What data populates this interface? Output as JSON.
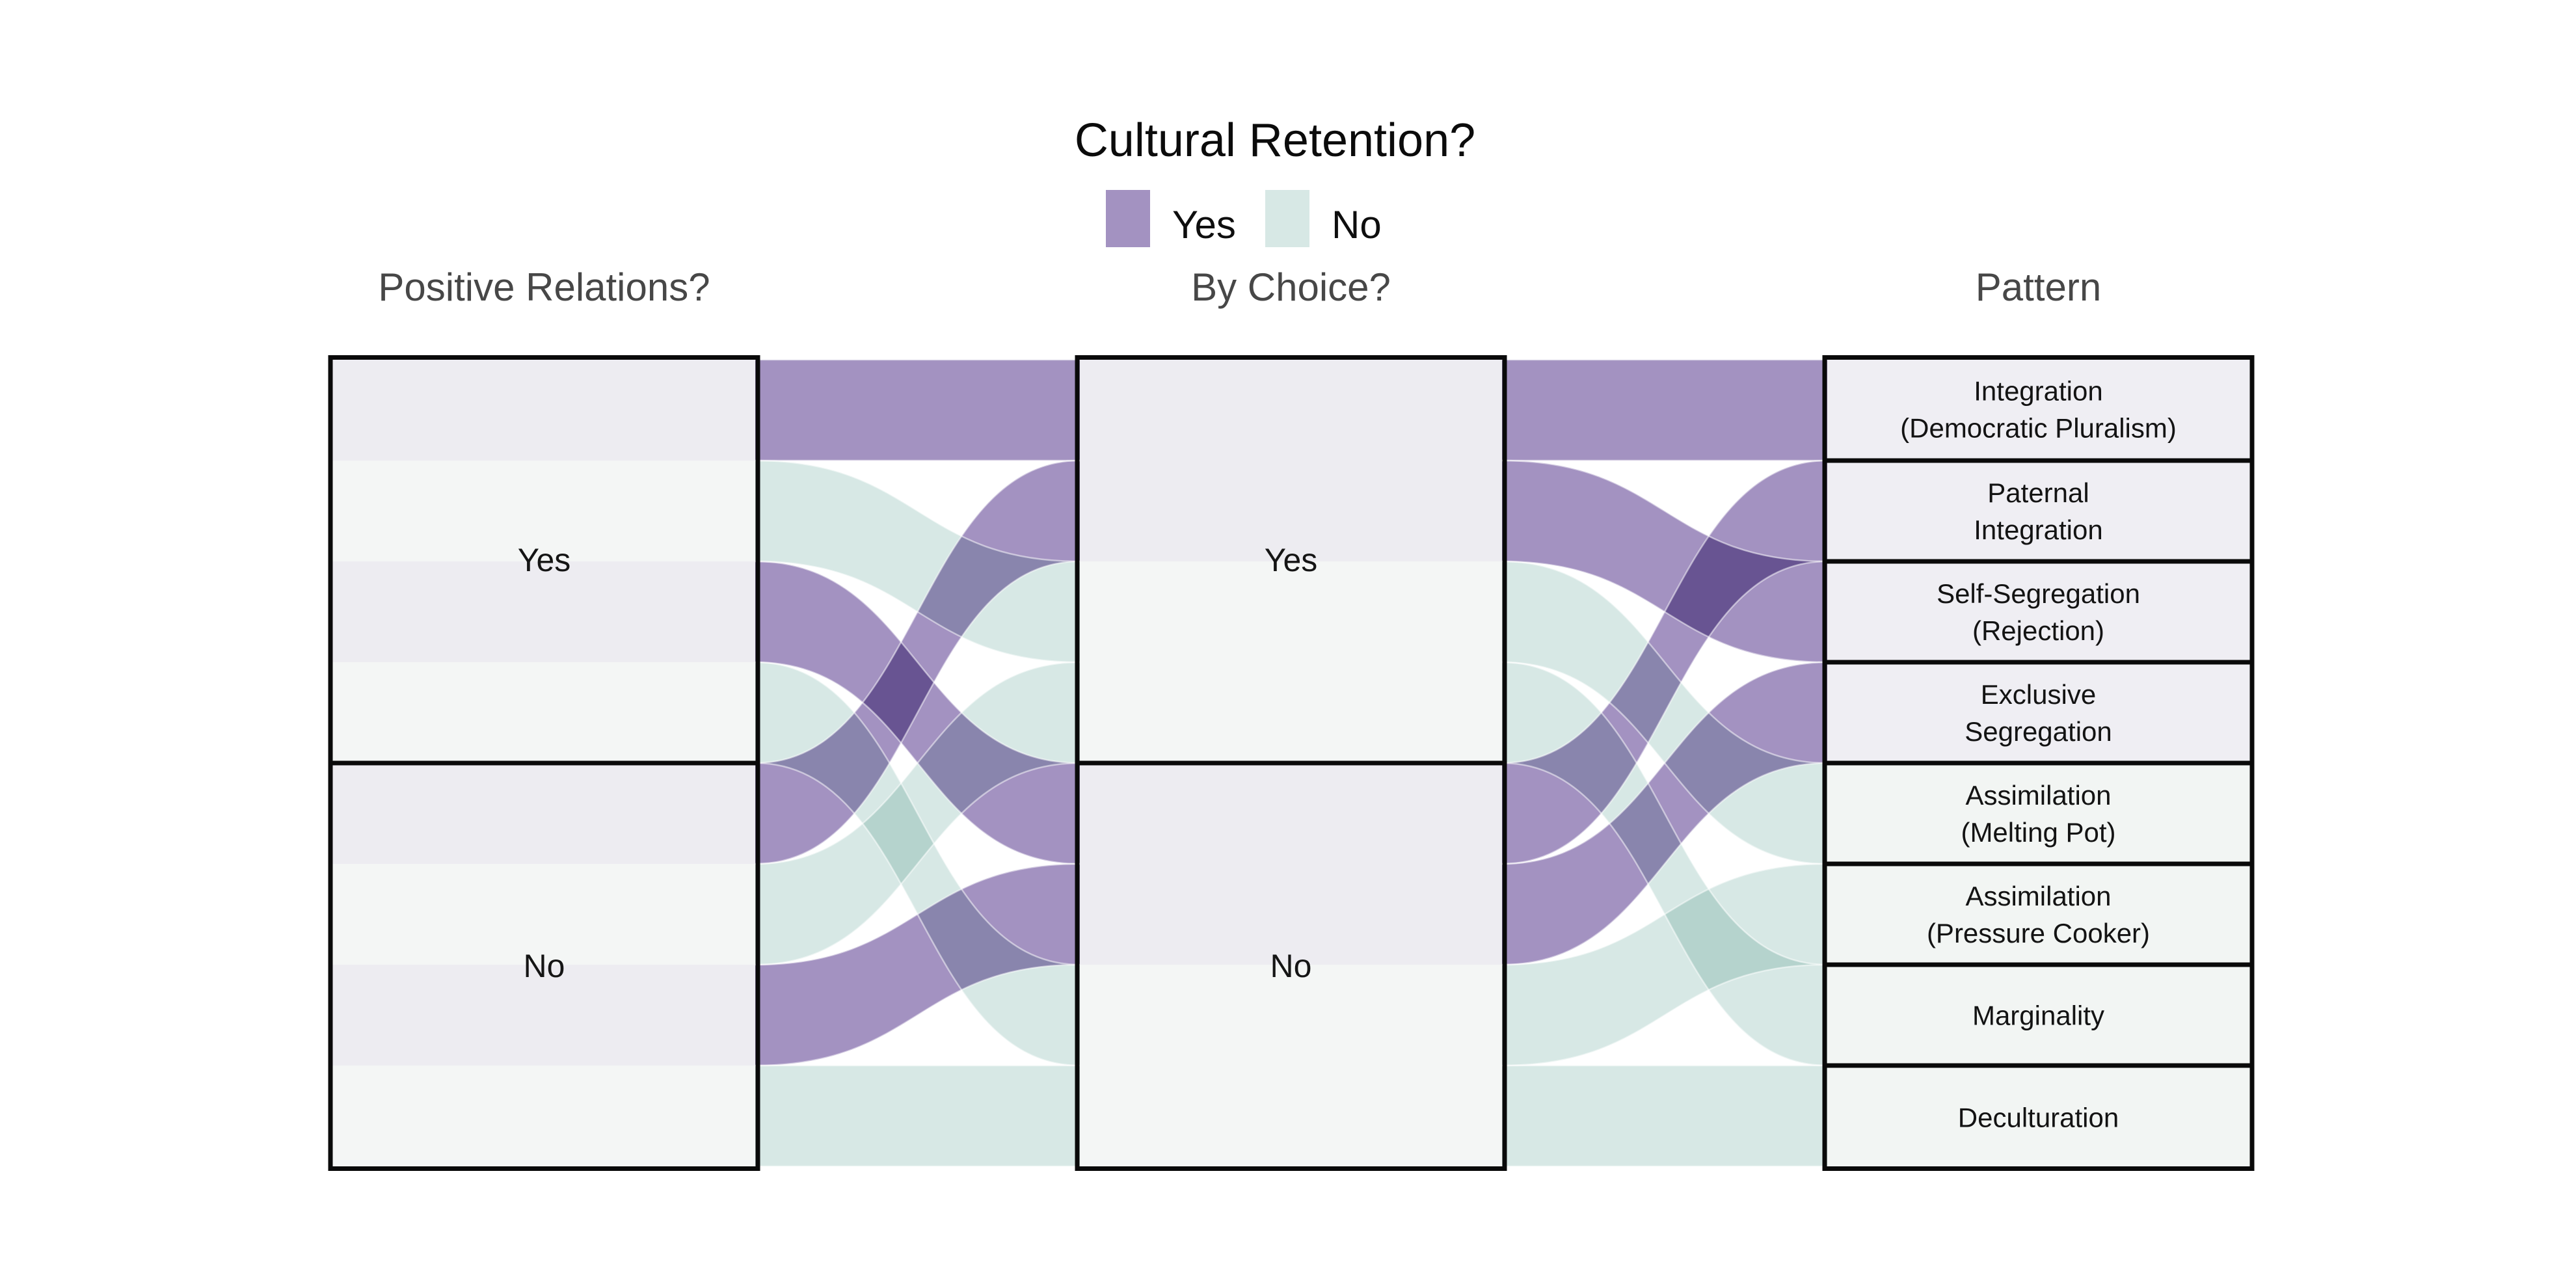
{
  "legend": {
    "title": "Cultural Retention?",
    "entries": [
      {
        "label": "Yes",
        "color": "#A392C1"
      },
      {
        "label": "No",
        "color": "#D7E8E5"
      }
    ]
  },
  "columns": [
    {
      "header": "Positive Relations?",
      "nodes": [
        {
          "label": "Yes"
        },
        {
          "label": "No"
        }
      ]
    },
    {
      "header": "By Choice?",
      "nodes": [
        {
          "label": "Yes"
        },
        {
          "label": "No"
        }
      ]
    },
    {
      "header": "Pattern"
    }
  ],
  "chart_data": {
    "type": "alluvial",
    "axes": [
      "Positive Relations?",
      "By Choice?",
      "Pattern"
    ],
    "legend_title": "Cultural Retention?",
    "series_colors": {
      "Yes": "#A392C1",
      "No": "#D7E8E5"
    },
    "node_stripe_colors": {
      "Yes": "#EDECF1",
      "No": "#F4F6F5"
    },
    "pattern_box_colors": {
      "Yes": "#EFEEF3",
      "No": "#F2F5F3"
    },
    "axis_node_split": {
      "col1_yes_slots": [
        1,
        2,
        3,
        4
      ],
      "col1_no_slots": [
        5,
        6,
        7,
        8
      ],
      "col2_yes_slots": [
        1,
        2,
        3,
        4
      ],
      "col2_no_slots": [
        5,
        6,
        7,
        8
      ]
    },
    "flows": [
      {
        "pattern": "Integration (Democratic Pluralism)",
        "pattern_lines": [
          "Integration",
          "(Democratic Pluralism)"
        ],
        "cultural_retention": "Yes",
        "positive_relations": "Yes",
        "by_choice": "Yes",
        "value": 1,
        "slots": [
          1,
          1,
          1
        ]
      },
      {
        "pattern": "Paternal Integration",
        "pattern_lines": [
          "Paternal",
          "Integration"
        ],
        "cultural_retention": "Yes",
        "positive_relations": "Yes",
        "by_choice": "No",
        "value": 1,
        "slots": [
          3,
          5,
          2
        ]
      },
      {
        "pattern": "Self-Segregation (Rejection)",
        "pattern_lines": [
          "Self-Segregation",
          "(Rejection)"
        ],
        "cultural_retention": "Yes",
        "positive_relations": "No",
        "by_choice": "Yes",
        "value": 1,
        "slots": [
          5,
          2,
          3
        ]
      },
      {
        "pattern": "Exclusive Segregation",
        "pattern_lines": [
          "Exclusive",
          "Segregation"
        ],
        "cultural_retention": "Yes",
        "positive_relations": "No",
        "by_choice": "No",
        "value": 1,
        "slots": [
          7,
          6,
          4
        ]
      },
      {
        "pattern": "Assimilation (Melting Pot)",
        "pattern_lines": [
          "Assimilation",
          "(Melting Pot)"
        ],
        "cultural_retention": "No",
        "positive_relations": "Yes",
        "by_choice": "Yes",
        "value": 1,
        "slots": [
          2,
          3,
          5
        ]
      },
      {
        "pattern": "Assimilation (Pressure Cooker)",
        "pattern_lines": [
          "Assimilation",
          "(Pressure Cooker)"
        ],
        "cultural_retention": "No",
        "positive_relations": "Yes",
        "by_choice": "No",
        "value": 1,
        "slots": [
          4,
          7,
          6
        ]
      },
      {
        "pattern": "Marginality",
        "pattern_lines": [
          "Marginality"
        ],
        "cultural_retention": "No",
        "positive_relations": "No",
        "by_choice": "Yes",
        "value": 1,
        "slots": [
          6,
          4,
          7
        ]
      },
      {
        "pattern": "Deculturation",
        "pattern_lines": [
          "Deculturation"
        ],
        "cultural_retention": "No",
        "positive_relations": "No",
        "by_choice": "No",
        "value": 1,
        "slots": [
          8,
          8,
          8
        ]
      }
    ]
  }
}
